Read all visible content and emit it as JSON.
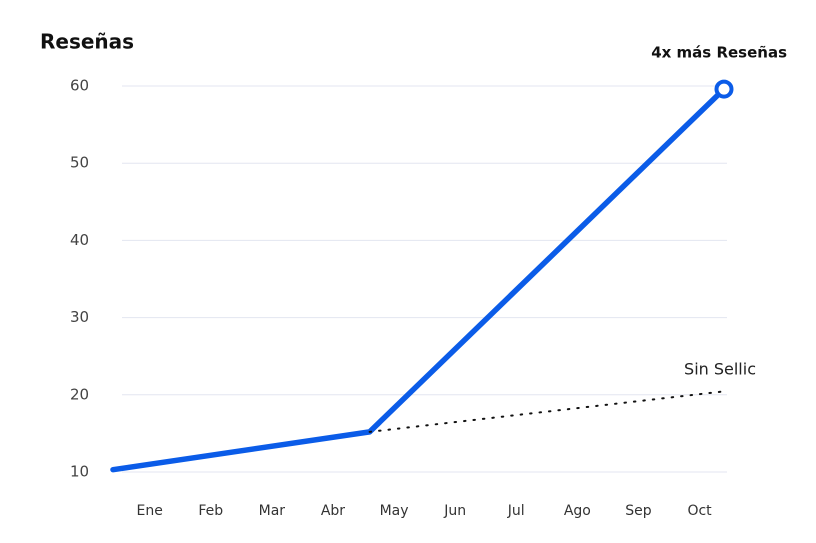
{
  "chart_data": {
    "type": "line",
    "title": "Reseñas",
    "categories": [
      "Ene",
      "Feb",
      "Mar",
      "Abr",
      "May",
      "Jun",
      "Jul",
      "Ago",
      "Sep",
      "Oct"
    ],
    "xlim": [
      -0.6,
      9.4
    ],
    "ylim": [
      10,
      60
    ],
    "yticks": [
      10,
      20,
      30,
      40,
      50,
      60
    ],
    "grid": true,
    "series": [
      {
        "name": "4x más Reseñas",
        "color": "#0b5ce8",
        "x": [
          -0.6,
          3.6,
          9.4
        ],
        "values": [
          10.3,
          15.2,
          59.6
        ]
      },
      {
        "name": "Sin Sellic",
        "color": "#111111",
        "x": [
          3.6,
          9.35
        ],
        "values": [
          15.2,
          20.4
        ]
      }
    ]
  }
}
